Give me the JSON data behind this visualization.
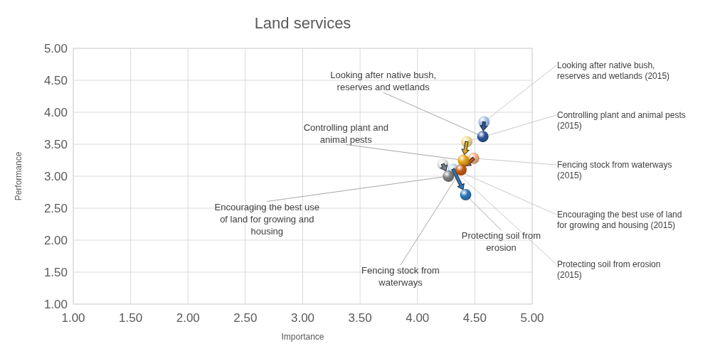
{
  "chart_data": {
    "type": "scatter",
    "title": "Land services",
    "xlabel": "Importance",
    "ylabel": "Performance",
    "marker": "circle",
    "grid": true,
    "xlim": [
      1,
      5
    ],
    "ylim": [
      1,
      5
    ],
    "xticks": [
      {
        "value": 1,
        "label": "1.00"
      },
      {
        "value": 1.5,
        "label": "1.50"
      },
      {
        "value": 2,
        "label": "2.00"
      },
      {
        "value": 2.5,
        "label": "2.50"
      },
      {
        "value": 3,
        "label": "3.00"
      },
      {
        "value": 3.5,
        "label": "3.50"
      },
      {
        "value": 4,
        "label": "4.00"
      },
      {
        "value": 4.5,
        "label": "4.50"
      },
      {
        "value": 5,
        "label": "5.00"
      }
    ],
    "yticks": [
      {
        "value": 1,
        "label": "1.00"
      },
      {
        "value": 1.5,
        "label": "1.50"
      },
      {
        "value": 2,
        "label": "2.00"
      },
      {
        "value": 2.5,
        "label": "2.50"
      },
      {
        "value": 3,
        "label": "3.00"
      },
      {
        "value": 3.5,
        "label": "3.50"
      },
      {
        "value": 4,
        "label": "4.00"
      },
      {
        "value": 4.5,
        "label": "4.50"
      },
      {
        "value": 5,
        "label": "5.00"
      }
    ],
    "series": [
      {
        "x": [
          4.58,
          4.57
        ],
        "values": [
          3.85,
          3.62
        ],
        "colors": [
          "#a9c4e8",
          "#2f5597"
        ]
      },
      {
        "x": [
          4.43,
          4.4
        ],
        "values": [
          3.54,
          3.25
        ],
        "colors": [
          "#f2dc8c",
          "#e6a817"
        ]
      },
      {
        "x": [
          4.22,
          4.27
        ],
        "values": [
          3.19,
          3.0
        ],
        "colors": [
          "#e7e6e6",
          "#7f7f7f"
        ]
      },
      {
        "x": [
          4.49,
          4.38
        ],
        "values": [
          3.28,
          3.1
        ],
        "colors": [
          "#f4b183",
          "#c55a11"
        ]
      },
      {
        "x": [
          4.31,
          4.42
        ],
        "values": [
          3.11,
          2.71
        ],
        "colors": [
          "#bdd7ee",
          "#2e75b6"
        ]
      }
    ],
    "annotations": [
      {
        "text": "Looking after native bush, reserves and wetlands",
        "x": 4.57,
        "y": 3.62
      },
      {
        "text": "Controlling plant and animal pests",
        "x": 4.4,
        "y": 3.25
      },
      {
        "text": "Encouraging the best use of land for growing and housing",
        "x": 4.27,
        "y": 3.0
      },
      {
        "text": "Fencing stock from waterways",
        "x": 4.38,
        "y": 3.1
      },
      {
        "text": "Protecting soil from erosion",
        "x": 4.42,
        "y": 2.71
      },
      {
        "text": "Looking after native bush, reserves and wetlands (2015)",
        "x": 4.58,
        "y": 3.85
      },
      {
        "text": "Controlling plant and animal pests (2015)",
        "x": 4.43,
        "y": 3.54
      },
      {
        "text": "Encouraging the best use of land for growing and housing (2015)",
        "x": 4.22,
        "y": 3.19
      },
      {
        "text": "Fencing stock from waterways (2015)",
        "x": 4.49,
        "y": 3.28
      },
      {
        "text": "Protecting soil from erosion (2015)",
        "x": 4.31,
        "y": 3.11
      }
    ]
  }
}
